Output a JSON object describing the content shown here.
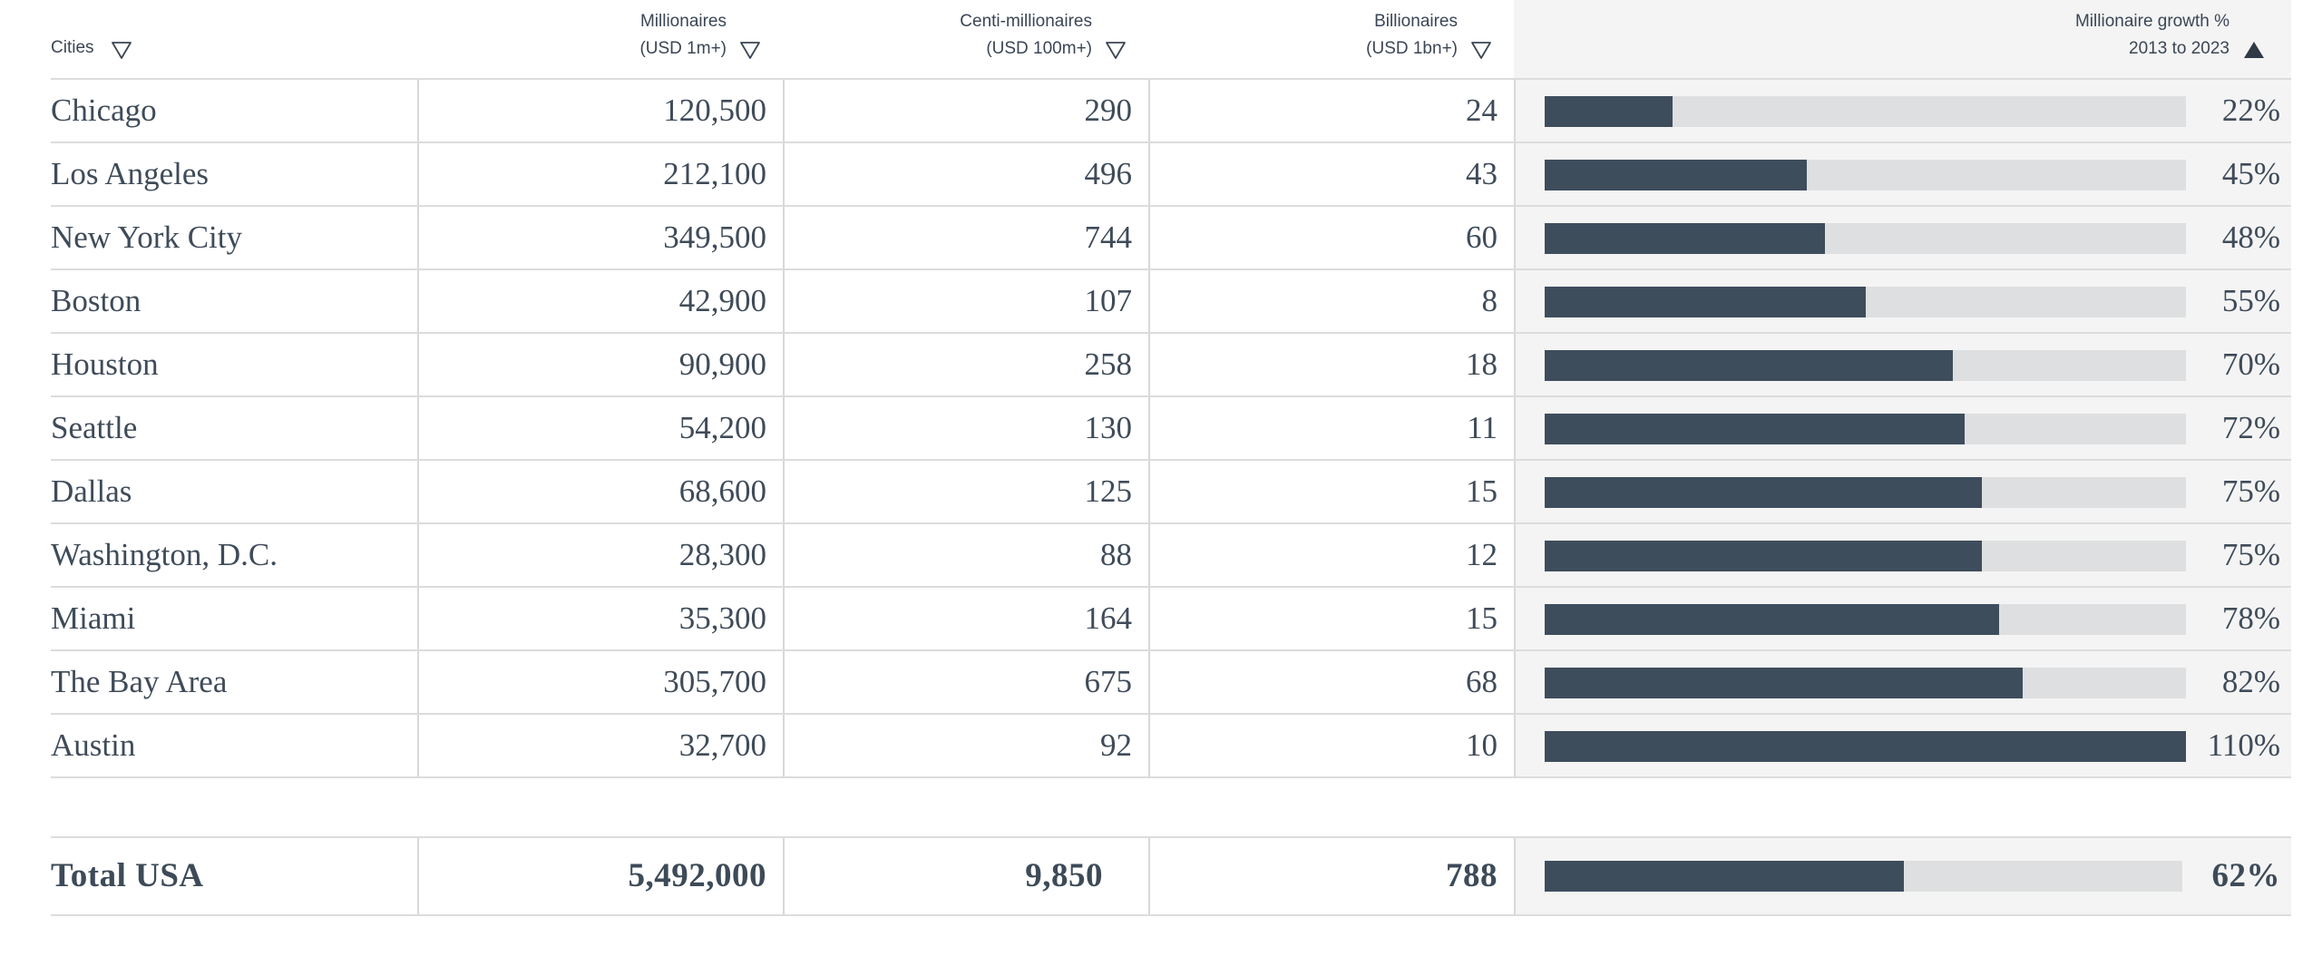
{
  "header": {
    "cities": "Cities",
    "millionaires": [
      "Millionaires",
      "(USD 1m+)"
    ],
    "centi": [
      "Centi-millionaires",
      "(USD 100m+)"
    ],
    "billionaires": [
      "Billionaires",
      "(USD 1bn+)"
    ],
    "growth": [
      "Millionaire growth %",
      "2013 to 2023"
    ]
  },
  "colors": {
    "bar": "#3e4d5c",
    "track": "#dedfe0",
    "growth_bg": "#f4f4f4",
    "text": "#3f4b59"
  },
  "icons": {
    "filter": "filter-triangle-icon",
    "sort": "sort-ascending-icon"
  },
  "rows": [
    {
      "city": "Chicago",
      "millionaires": "120,500",
      "centi": "290",
      "billionaires": "24",
      "growth": "22%",
      "growth_value": 22
    },
    {
      "city": "Los Angeles",
      "millionaires": "212,100",
      "centi": "496",
      "billionaires": "43",
      "growth": "45%",
      "growth_value": 45
    },
    {
      "city": "New York City",
      "millionaires": "349,500",
      "centi": "744",
      "billionaires": "60",
      "growth": "48%",
      "growth_value": 48
    },
    {
      "city": "Boston",
      "millionaires": "42,900",
      "centi": "107",
      "billionaires": "8",
      "growth": "55%",
      "growth_value": 55
    },
    {
      "city": "Houston",
      "millionaires": "90,900",
      "centi": "258",
      "billionaires": "18",
      "growth": "70%",
      "growth_value": 70
    },
    {
      "city": "Seattle",
      "millionaires": "54,200",
      "centi": "130",
      "billionaires": "11",
      "growth": "72%",
      "growth_value": 72
    },
    {
      "city": "Dallas",
      "millionaires": "68,600",
      "centi": "125",
      "billionaires": "15",
      "growth": "75%",
      "growth_value": 75
    },
    {
      "city": "Washington, D.C.",
      "millionaires": "28,300",
      "centi": "88",
      "billionaires": "12",
      "growth": "75%",
      "growth_value": 75
    },
    {
      "city": "Miami",
      "millionaires": "35,300",
      "centi": "164",
      "billionaires": "15",
      "growth": "78%",
      "growth_value": 78
    },
    {
      "city": "The Bay Area",
      "millionaires": "305,700",
      "centi": "675",
      "billionaires": "68",
      "growth": "82%",
      "growth_value": 82
    },
    {
      "city": "Austin",
      "millionaires": "32,700",
      "centi": "92",
      "billionaires": "10",
      "growth": "110%",
      "growth_value": 110
    }
  ],
  "growth_scale_max": 110,
  "total": {
    "label": "Total USA",
    "millionaires": "5,492,000",
    "centi": "9,850",
    "billionaires": "788",
    "growth": "62%",
    "growth_value": 62
  }
}
